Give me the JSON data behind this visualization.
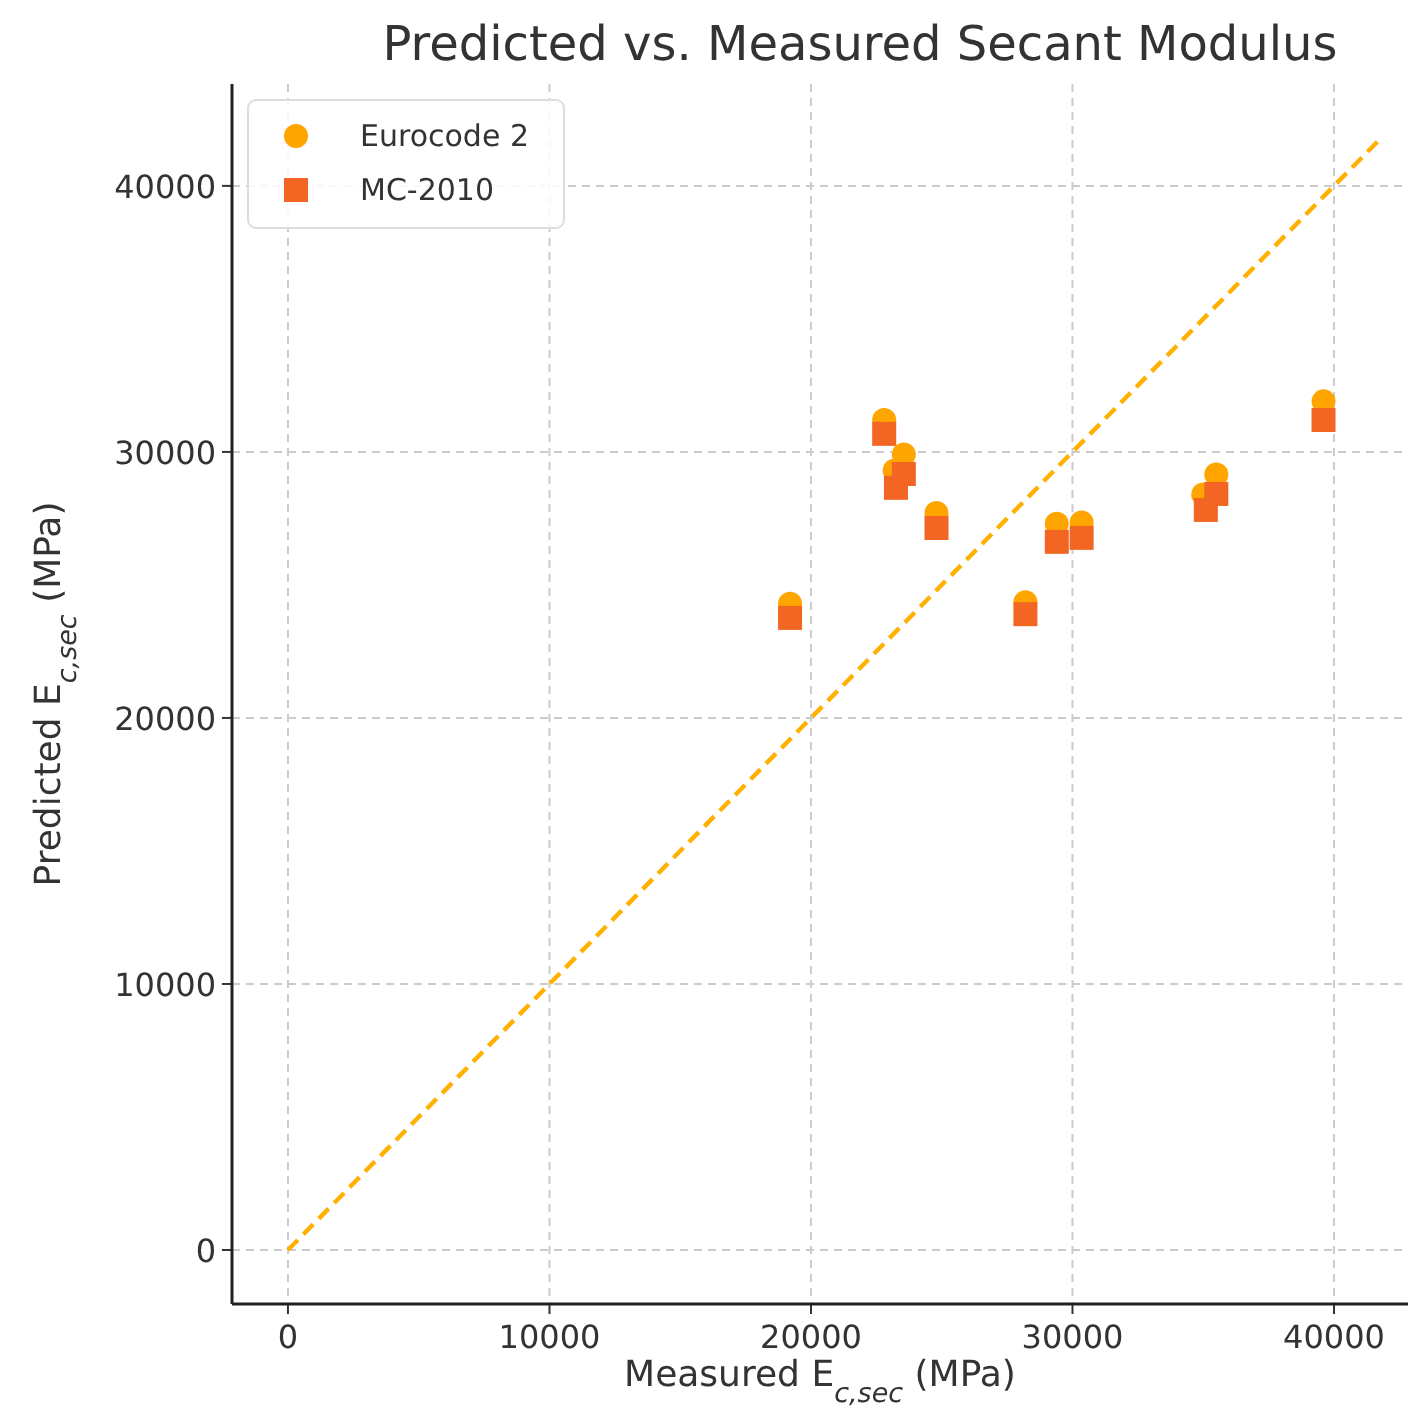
{
  "chart_data": {
    "type": "scatter",
    "title": "Predicted vs. Measured Secant Modulus",
    "xlabel": "Measured E$_{c,sec}$ (MPa)",
    "ylabel": "Predicted E$_{c,sec}$ (MPa)",
    "xlim": [
      -2140,
      42830
    ],
    "ylim": [
      -2030,
      43830
    ],
    "xticks": [
      0,
      10000,
      20000,
      30000,
      40000
    ],
    "yticks": [
      0,
      10000,
      20000,
      30000,
      40000
    ],
    "grid": true,
    "legend": "top left",
    "series": [
      {
        "name": "Eurocode 2",
        "color": "#ffa500",
        "marker": "circle",
        "x": [
          19200,
          22800,
          23550,
          23200,
          24800,
          29400,
          30350,
          28200,
          35500,
          35000,
          39600
        ],
        "values": [
          24290,
          31200,
          29900,
          29300,
          27700,
          27300,
          27350,
          24350,
          29150,
          28400,
          31900
        ]
      },
      {
        "name": "MC-2010",
        "color": "#f26522",
        "marker": "square",
        "x": [
          19200,
          22800,
          23550,
          23250,
          24800,
          29400,
          30350,
          28200,
          35500,
          35100,
          39600
        ],
        "values": [
          23760,
          30680,
          29170,
          28650,
          27140,
          26620,
          26770,
          23900,
          28420,
          27820,
          31200
        ]
      },
      {
        "type": "line",
        "color": "#ffb000",
        "line_style": "dashed",
        "marker": "none",
        "x": [
          0,
          41800
        ],
        "values": [
          0,
          41800
        ]
      }
    ]
  }
}
